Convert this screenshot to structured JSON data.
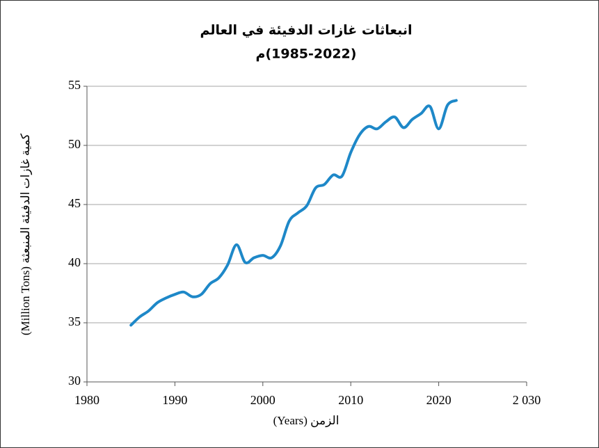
{
  "chart_data": {
    "type": "line",
    "title": "انبعاثات غازات الدفيئة في العالم",
    "subtitle": "(1985-2022)م",
    "x_label": "الزمن (Years)",
    "y_label": "كمية غازات الدفيئة المنبعثة (Million Tons)",
    "x": [
      1985,
      1986,
      1987,
      1988,
      1989,
      1990,
      1991,
      1992,
      1993,
      1994,
      1995,
      1996,
      1997,
      1998,
      1999,
      2000,
      2001,
      2002,
      2003,
      2004,
      2005,
      2006,
      2007,
      2008,
      2009,
      2010,
      2011,
      2012,
      2013,
      2014,
      2015,
      2016,
      2017,
      2018,
      2019,
      2020,
      2021,
      2022
    ],
    "series": [
      {
        "color": "#1e88c8",
        "values": [
          34.8,
          35.5,
          36.0,
          36.7,
          37.1,
          37.4,
          37.6,
          37.2,
          37.4,
          38.3,
          38.8,
          39.9,
          41.6,
          40.1,
          40.5,
          40.7,
          40.5,
          41.5,
          43.6,
          44.3,
          44.9,
          46.4,
          46.7,
          47.5,
          47.4,
          49.4,
          50.9,
          51.6,
          51.4,
          52.0,
          52.4,
          51.5,
          52.2,
          52.7,
          53.3,
          51.4,
          53.4,
          53.8
        ]
      }
    ],
    "xlim": [
      1980,
      2030
    ],
    "xticks": [
      1980,
      1990,
      2000,
      2010,
      2020,
      {
        "value": 2030,
        "label": "2 030"
      }
    ],
    "ylim": [
      30,
      55
    ],
    "yticks": [
      30,
      35,
      40,
      45,
      50,
      55
    ],
    "grid": true
  }
}
